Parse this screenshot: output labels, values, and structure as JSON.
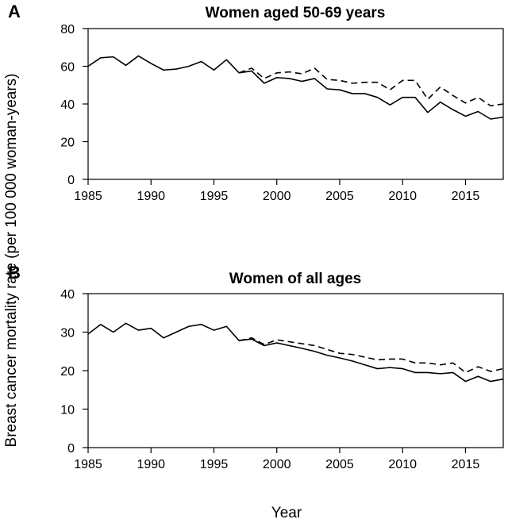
{
  "figure": {
    "ylabel": "Breast cancer mortality rate (per 100 000 woman-years)",
    "xlabel": "Year"
  },
  "chart_data": [
    {
      "panel": "A",
      "type": "line",
      "title": "Women aged 50-69 years",
      "xlim": [
        1985,
        2018
      ],
      "ylim": [
        0,
        80
      ],
      "xticks": [
        1985,
        1990,
        1995,
        2000,
        2005,
        2010,
        2015
      ],
      "yticks": [
        0,
        20,
        40,
        60,
        80
      ],
      "x": [
        1985,
        1986,
        1987,
        1988,
        1989,
        1990,
        1991,
        1992,
        1993,
        1994,
        1995,
        1996,
        1997,
        1998,
        1999,
        2000,
        2001,
        2002,
        2003,
        2004,
        2005,
        2006,
        2007,
        2008,
        2009,
        2010,
        2011,
        2012,
        2013,
        2014,
        2015,
        2016,
        2017,
        2018
      ],
      "series": [
        {
          "style": "solid",
          "values": [
            60,
            64.5,
            65,
            60.5,
            65.5,
            61.5,
            58,
            58.5,
            60,
            62.5,
            58,
            63.5,
            56.5,
            57.5,
            51,
            54,
            53.5,
            52,
            53.5,
            48,
            47.5,
            45.5,
            45.5,
            43.5,
            39.5,
            43.5,
            43.5,
            35.5,
            41,
            37,
            33.5,
            36,
            32,
            33
          ]
        },
        {
          "style": "dashed",
          "values": [
            null,
            null,
            null,
            null,
            null,
            null,
            null,
            null,
            null,
            null,
            null,
            null,
            56.5,
            59,
            53.5,
            56.5,
            57,
            56,
            59,
            53,
            52.5,
            51,
            51.5,
            51.5,
            47.5,
            52.5,
            52.5,
            42.5,
            49,
            44.5,
            40.5,
            43.5,
            39,
            40
          ]
        }
      ]
    },
    {
      "panel": "B",
      "type": "line",
      "title": "Women of all ages",
      "xlim": [
        1985,
        2018
      ],
      "ylim": [
        0,
        40
      ],
      "xticks": [
        1985,
        1990,
        1995,
        2000,
        2005,
        2010,
        2015
      ],
      "yticks": [
        0,
        10,
        20,
        30,
        40
      ],
      "x": [
        1985,
        1986,
        1987,
        1988,
        1989,
        1990,
        1991,
        1992,
        1993,
        1994,
        1995,
        1996,
        1997,
        1998,
        1999,
        2000,
        2001,
        2002,
        2003,
        2004,
        2005,
        2006,
        2007,
        2008,
        2009,
        2010,
        2011,
        2012,
        2013,
        2014,
        2015,
        2016,
        2017,
        2018
      ],
      "series": [
        {
          "style": "solid",
          "values": [
            29.5,
            32,
            30,
            32.3,
            30.5,
            31,
            28.5,
            30,
            31.5,
            32,
            30.5,
            31.5,
            27.8,
            28.2,
            26.5,
            27.2,
            26.5,
            25.8,
            25,
            24,
            23.3,
            22.5,
            21.5,
            20.5,
            20.8,
            20.5,
            19.5,
            19.5,
            19.2,
            19.5,
            17.2,
            18.5,
            17.2,
            17.8
          ]
        },
        {
          "style": "dashed",
          "values": [
            null,
            null,
            null,
            null,
            null,
            null,
            null,
            null,
            null,
            null,
            null,
            null,
            27.8,
            28.5,
            26.8,
            28,
            27.5,
            27,
            26.5,
            25.5,
            24.5,
            24.2,
            23.5,
            22.8,
            23,
            23,
            22,
            22,
            21.5,
            22,
            19.5,
            21,
            19.8,
            20.5
          ]
        }
      ]
    }
  ]
}
